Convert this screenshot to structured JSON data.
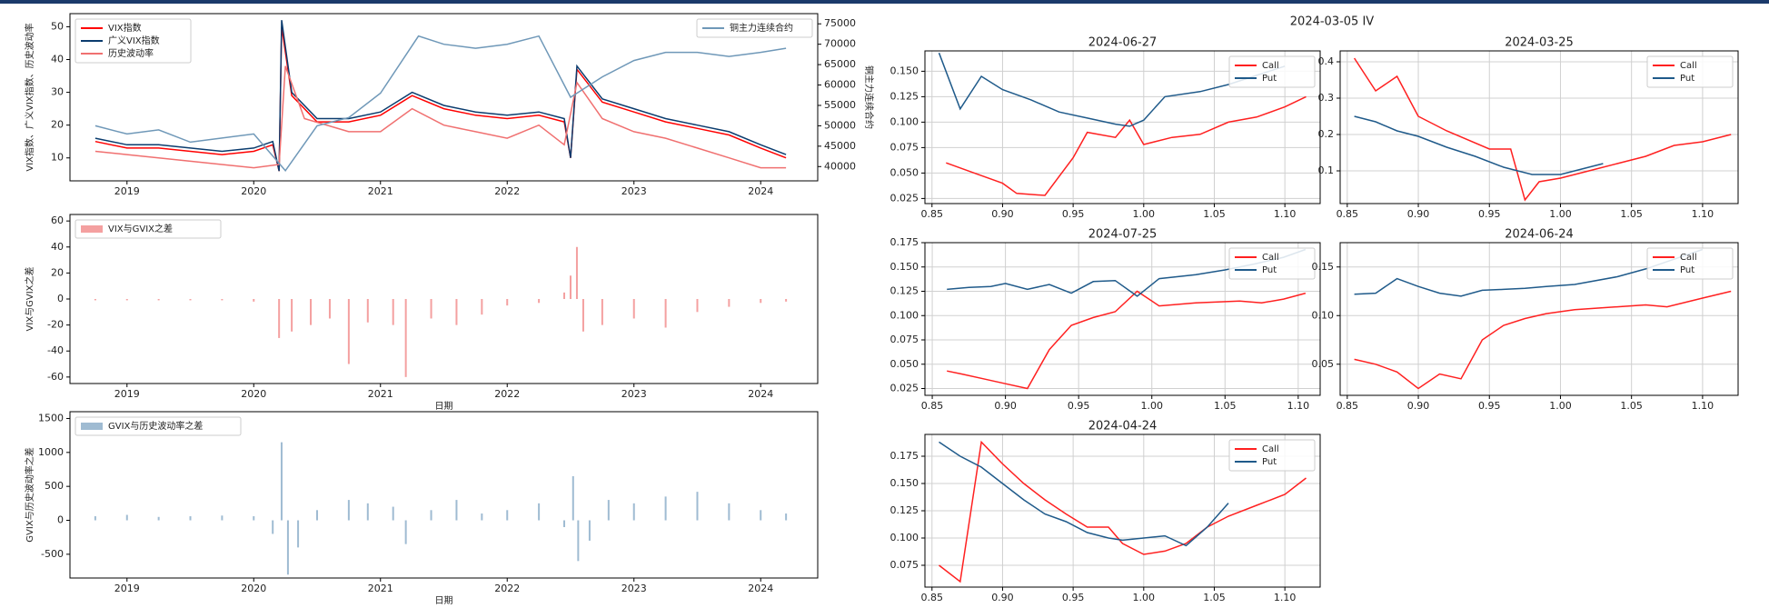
{
  "figure_title": "2024-03-05 IV",
  "chart_data": [
    {
      "type": "line",
      "ylabel": "VIX指数、广义VIX指数、历史波动率",
      "y2label": "铜主力连续合约",
      "xlim": [
        2018.55,
        2024.45
      ],
      "xticks": [
        2019,
        2020,
        2021,
        2022,
        2023,
        2024
      ],
      "ylim": [
        3,
        54
      ],
      "yticks": [
        10,
        20,
        30,
        40,
        50
      ],
      "y2lim": [
        36500,
        77500
      ],
      "y2ticks": [
        40000,
        45000,
        50000,
        55000,
        60000,
        65000,
        70000,
        75000
      ],
      "legend": "upper left",
      "y2legend": "upper right",
      "grid": false,
      "series": [
        {
          "name": "VIX指数",
          "color": "#ff0000",
          "x": [
            2018.75,
            2019.0,
            2019.25,
            2019.5,
            2019.75,
            2020.0,
            2020.15,
            2020.2,
            2020.22,
            2020.3,
            2020.5,
            2020.75,
            2021.0,
            2021.25,
            2021.5,
            2021.75,
            2022.0,
            2022.25,
            2022.45,
            2022.5,
            2022.55,
            2022.75,
            2023.0,
            2023.25,
            2023.5,
            2023.75,
            2024.0,
            2024.2
          ],
          "values": [
            15,
            13,
            13,
            12,
            11,
            12,
            14,
            6,
            50,
            29,
            21,
            21,
            23,
            29,
            25,
            23,
            22,
            23,
            21,
            10,
            37,
            27,
            24,
            21,
            19,
            17,
            13,
            10
          ]
        },
        {
          "name": "广义VIX指数",
          "color": "#0b3c6e",
          "x": [
            2018.75,
            2019.0,
            2019.25,
            2019.5,
            2019.75,
            2020.0,
            2020.15,
            2020.2,
            2020.22,
            2020.3,
            2020.5,
            2020.75,
            2021.0,
            2021.25,
            2021.5,
            2021.75,
            2022.0,
            2022.25,
            2022.45,
            2022.5,
            2022.55,
            2022.75,
            2023.0,
            2023.25,
            2023.5,
            2023.75,
            2024.0,
            2024.2
          ],
          "values": [
            16,
            14,
            14,
            13,
            12,
            13,
            15,
            6,
            52,
            30,
            22,
            22,
            24,
            30,
            26,
            24,
            23,
            24,
            22,
            10,
            38,
            28,
            25,
            22,
            20,
            18,
            14,
            11
          ]
        },
        {
          "name": "历史波动率",
          "color": "#f07070",
          "x": [
            2018.75,
            2019.0,
            2019.5,
            2020.0,
            2020.2,
            2020.25,
            2020.4,
            2020.75,
            2021.0,
            2021.25,
            2021.5,
            2021.75,
            2022.0,
            2022.25,
            2022.45,
            2022.55,
            2022.75,
            2023.0,
            2023.25,
            2023.5,
            2023.75,
            2024.0,
            2024.2
          ],
          "values": [
            12,
            11,
            9,
            7,
            8,
            38,
            22,
            18,
            18,
            25,
            20,
            18,
            16,
            20,
            14,
            33,
            22,
            18,
            16,
            13,
            10,
            7,
            7
          ]
        },
        {
          "name": "铜主力连续合约",
          "color": "#6f98b8",
          "axis": "y2",
          "x": [
            2018.75,
            2019.0,
            2019.25,
            2019.5,
            2019.75,
            2020.0,
            2020.25,
            2020.5,
            2020.75,
            2021.0,
            2021.3,
            2021.5,
            2021.75,
            2022.0,
            2022.25,
            2022.5,
            2022.75,
            2023.0,
            2023.25,
            2023.5,
            2023.75,
            2024.0,
            2024.2
          ],
          "values": [
            50000,
            48000,
            49000,
            46000,
            47000,
            48000,
            39000,
            50000,
            52000,
            58000,
            72000,
            70000,
            69000,
            70000,
            72000,
            57000,
            62000,
            66000,
            68000,
            68000,
            67000,
            68000,
            69000
          ]
        }
      ]
    },
    {
      "type": "bar",
      "ylabel": "VIX与GVIX之差",
      "xlabel": "日期",
      "xlim": [
        2018.55,
        2024.45
      ],
      "xticks": [
        2019,
        2020,
        2021,
        2022,
        2023,
        2024
      ],
      "ylim": [
        -65,
        65
      ],
      "yticks": [
        -60,
        -40,
        -20,
        0,
        20,
        40,
        60
      ],
      "legend": "upper left",
      "grid": false,
      "series": [
        {
          "name": "VIX与GVIX之差",
          "color": "#f4a0a0",
          "x": [
            2018.75,
            2019.0,
            2019.25,
            2019.5,
            2019.75,
            2020.0,
            2020.2,
            2020.3,
            2020.45,
            2020.6,
            2020.75,
            2020.9,
            2021.1,
            2021.2,
            2021.4,
            2021.6,
            2021.8,
            2022.0,
            2022.25,
            2022.45,
            2022.5,
            2022.55,
            2022.6,
            2022.75,
            2023.0,
            2023.25,
            2023.5,
            2023.75,
            2024.0,
            2024.2
          ],
          "values": [
            -1,
            -1,
            -1,
            -1,
            -1,
            -2,
            -30,
            -25,
            -20,
            -15,
            -50,
            -18,
            -20,
            -60,
            -15,
            -20,
            -12,
            -5,
            -3,
            5,
            18,
            40,
            -25,
            -20,
            -15,
            -22,
            -10,
            -6,
            -3,
            -2
          ]
        }
      ]
    },
    {
      "type": "bar",
      "ylabel": "GVIX与历史波动率之差",
      "xlabel": "日期",
      "xlim": [
        2018.55,
        2024.45
      ],
      "xticks": [
        2019,
        2020,
        2021,
        2022,
        2023,
        2024
      ],
      "ylim": [
        -850,
        1600
      ],
      "yticks": [
        -500,
        0,
        500,
        1000,
        1500
      ],
      "legend": "upper left",
      "grid": false,
      "series": [
        {
          "name": "GVIX与历史波动率之差",
          "color": "#9fbbd2",
          "x": [
            2018.75,
            2019.0,
            2019.25,
            2019.5,
            2019.75,
            2020.0,
            2020.15,
            2020.22,
            2020.27,
            2020.35,
            2020.5,
            2020.75,
            2020.9,
            2021.1,
            2021.2,
            2021.4,
            2021.6,
            2021.8,
            2022.0,
            2022.25,
            2022.45,
            2022.52,
            2022.56,
            2022.65,
            2022.8,
            2023.0,
            2023.25,
            2023.5,
            2023.75,
            2024.0,
            2024.2
          ],
          "values": [
            60,
            80,
            50,
            60,
            70,
            60,
            -200,
            1150,
            -800,
            -400,
            150,
            300,
            250,
            200,
            -350,
            150,
            300,
            100,
            150,
            250,
            -100,
            650,
            -600,
            -300,
            300,
            250,
            350,
            420,
            250,
            150,
            100
          ]
        }
      ]
    },
    {
      "type": "line",
      "title": "2024-06-27",
      "xlim": [
        0.845,
        1.125
      ],
      "xticks": [
        0.85,
        {
          "value": 0.9,
          "label": "0.90"
        },
        0.95,
        {
          "value": 1.0,
          "label": "1.00"
        },
        1.05,
        {
          "value": 1.1,
          "label": "1.10"
        }
      ],
      "ylim": [
        0.02,
        0.17
      ],
      "yticks": [
        0.025,
        {
          "value": 0.05,
          "label": "0.050"
        },
        0.075,
        {
          "value": 0.1,
          "label": "0.100"
        },
        0.125,
        {
          "value": 0.15,
          "label": "0.150"
        }
      ],
      "legend": "upper right",
      "grid": true,
      "series": [
        {
          "name": "Call",
          "color": "#ff2020",
          "x": [
            0.86,
            0.88,
            0.9,
            0.91,
            0.93,
            0.95,
            0.96,
            0.98,
            0.99,
            1.0,
            1.02,
            1.04,
            1.06,
            1.08,
            1.1,
            1.115
          ],
          "values": [
            0.06,
            0.05,
            0.04,
            0.03,
            0.028,
            0.065,
            0.09,
            0.085,
            0.102,
            0.078,
            0.085,
            0.088,
            0.1,
            0.105,
            0.115,
            0.125
          ]
        },
        {
          "name": "Put",
          "color": "#1f5a8a",
          "x": [
            0.855,
            0.87,
            0.885,
            0.9,
            0.92,
            0.94,
            0.96,
            0.98,
            0.99,
            1.0,
            1.015,
            1.04,
            1.06,
            1.08,
            1.1
          ],
          "values": [
            0.168,
            0.113,
            0.145,
            0.132,
            0.122,
            0.11,
            0.104,
            0.098,
            0.096,
            0.102,
            0.125,
            0.13,
            0.137,
            0.146,
            0.155
          ]
        }
      ]
    },
    {
      "type": "line",
      "title": "2024-03-25",
      "xlim": [
        0.845,
        1.125
      ],
      "xticks": [
        0.85,
        {
          "value": 0.9,
          "label": "0.90"
        },
        0.95,
        {
          "value": 1.0,
          "label": "1.00"
        },
        1.05,
        {
          "value": 1.1,
          "label": "1.10"
        }
      ],
      "ylim": [
        0.01,
        0.43
      ],
      "yticks": [
        0.1,
        0.2,
        0.3,
        0.4
      ],
      "legend": "upper right",
      "grid": true,
      "series": [
        {
          "name": "Call",
          "color": "#ff2020",
          "x": [
            0.855,
            0.87,
            0.885,
            0.9,
            0.92,
            0.95,
            0.965,
            0.975,
            0.985,
            1.0,
            1.02,
            1.04,
            1.06,
            1.08,
            1.1,
            1.12
          ],
          "values": [
            0.41,
            0.32,
            0.36,
            0.25,
            0.21,
            0.16,
            0.16,
            0.02,
            0.07,
            0.08,
            0.1,
            0.12,
            0.14,
            0.17,
            0.18,
            0.2
          ]
        },
        {
          "name": "Put",
          "color": "#1f5a8a",
          "x": [
            0.855,
            0.87,
            0.885,
            0.9,
            0.92,
            0.94,
            0.96,
            0.98,
            0.99,
            1.0,
            1.015,
            1.03
          ],
          "values": [
            0.25,
            0.235,
            0.21,
            0.195,
            0.165,
            0.14,
            0.11,
            0.09,
            0.09,
            0.09,
            0.105,
            0.12
          ]
        }
      ]
    },
    {
      "type": "line",
      "title": "2024-07-25",
      "xlim": [
        0.845,
        1.115
      ],
      "xticks": [
        0.85,
        {
          "value": 0.9,
          "label": "0.90"
        },
        0.95,
        {
          "value": 1.0,
          "label": "1.00"
        },
        1.05,
        {
          "value": 1.1,
          "label": "1.10"
        }
      ],
      "ylim": [
        0.018,
        0.175
      ],
      "yticks": [
        0.025,
        {
          "value": 0.05,
          "label": "0.050"
        },
        0.075,
        {
          "value": 0.1,
          "label": "0.100"
        },
        0.125,
        {
          "value": 0.15,
          "label": "0.150"
        },
        0.175
      ],
      "legend": "upper right",
      "grid": true,
      "series": [
        {
          "name": "Call",
          "color": "#ff2020",
          "x": [
            0.86,
            0.87,
            0.885,
            0.9,
            0.915,
            0.93,
            0.945,
            0.96,
            0.975,
            0.99,
            1.005,
            1.03,
            1.06,
            1.075,
            1.09,
            1.105
          ],
          "values": [
            0.043,
            0.04,
            0.035,
            0.03,
            0.025,
            0.065,
            0.09,
            0.098,
            0.104,
            0.125,
            0.11,
            0.113,
            0.115,
            0.113,
            0.117,
            0.123
          ]
        },
        {
          "name": "Put",
          "color": "#1f5a8a",
          "x": [
            0.86,
            0.875,
            0.89,
            0.9,
            0.915,
            0.93,
            0.945,
            0.96,
            0.975,
            0.99,
            1.005,
            1.03,
            1.05,
            1.07,
            1.09,
            1.105
          ],
          "values": [
            0.127,
            0.129,
            0.13,
            0.133,
            0.127,
            0.132,
            0.123,
            0.135,
            0.136,
            0.12,
            0.138,
            0.142,
            0.147,
            0.153,
            0.16,
            0.168
          ]
        }
      ]
    },
    {
      "type": "line",
      "title": "2024-06-24",
      "xlim": [
        0.845,
        1.125
      ],
      "xticks": [
        0.85,
        {
          "value": 0.9,
          "label": "0.90"
        },
        0.95,
        {
          "value": 1.0,
          "label": "1.00"
        },
        1.05,
        {
          "value": 1.1,
          "label": "1.10"
        }
      ],
      "ylim": [
        0.018,
        0.175
      ],
      "yticks": [
        {
          "value": 0.05,
          "label": "0.05"
        },
        {
          "value": 0.1,
          "label": "0.10"
        },
        {
          "value": 0.15,
          "label": "0.15"
        }
      ],
      "legend": "upper right",
      "grid": true,
      "series": [
        {
          "name": "Call",
          "color": "#ff2020",
          "x": [
            0.855,
            0.87,
            0.885,
            0.9,
            0.915,
            0.93,
            0.945,
            0.96,
            0.975,
            0.99,
            1.01,
            1.04,
            1.06,
            1.075,
            1.1,
            1.12
          ],
          "values": [
            0.055,
            0.05,
            0.042,
            0.025,
            0.04,
            0.035,
            0.075,
            0.09,
            0.097,
            0.102,
            0.106,
            0.109,
            0.111,
            0.109,
            0.118,
            0.125
          ]
        },
        {
          "name": "Put",
          "color": "#1f5a8a",
          "x": [
            0.855,
            0.87,
            0.885,
            0.9,
            0.915,
            0.93,
            0.945,
            0.96,
            0.975,
            0.99,
            1.01,
            1.04,
            1.06,
            1.08,
            1.1
          ],
          "values": [
            0.122,
            0.123,
            0.138,
            0.13,
            0.123,
            0.12,
            0.126,
            0.127,
            0.128,
            0.13,
            0.132,
            0.14,
            0.148,
            0.158,
            0.168
          ]
        }
      ]
    },
    {
      "type": "line",
      "title": "2024-04-24",
      "xlim": [
        0.845,
        1.125
      ],
      "xticks": [
        0.85,
        {
          "value": 0.9,
          "label": "0.90"
        },
        0.95,
        {
          "value": 1.0,
          "label": "1.00"
        },
        1.05,
        {
          "value": 1.1,
          "label": "1.10"
        }
      ],
      "ylim": [
        0.055,
        0.195
      ],
      "yticks": [
        0.075,
        {
          "value": 0.1,
          "label": "0.100"
        },
        0.125,
        {
          "value": 0.15,
          "label": "0.150"
        },
        0.175
      ],
      "legend": "upper right",
      "grid": true,
      "series": [
        {
          "name": "Call",
          "color": "#ff2020",
          "x": [
            0.855,
            0.87,
            0.885,
            0.9,
            0.915,
            0.93,
            0.945,
            0.96,
            0.975,
            0.985,
            1.0,
            1.015,
            1.03,
            1.045,
            1.06,
            1.08,
            1.1,
            1.115
          ],
          "values": [
            0.075,
            0.06,
            0.188,
            0.168,
            0.15,
            0.135,
            0.122,
            0.11,
            0.11,
            0.095,
            0.085,
            0.088,
            0.095,
            0.11,
            0.12,
            0.13,
            0.14,
            0.155
          ]
        },
        {
          "name": "Put",
          "color": "#1f5a8a",
          "x": [
            0.855,
            0.87,
            0.885,
            0.9,
            0.915,
            0.93,
            0.945,
            0.96,
            0.975,
            0.985,
            1.0,
            1.015,
            1.03,
            1.045,
            1.06
          ],
          "values": [
            0.188,
            0.175,
            0.165,
            0.15,
            0.135,
            0.122,
            0.115,
            0.105,
            0.1,
            0.098,
            0.1,
            0.102,
            0.093,
            0.11,
            0.132
          ]
        }
      ]
    }
  ]
}
